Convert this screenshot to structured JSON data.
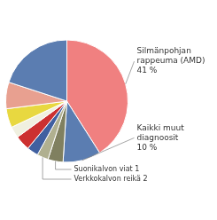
{
  "chart_data": {
    "type": "pie",
    "categories": [
      "Silmänpohjan\nrappeuma (AMD)\n41 %",
      "Kaikki muut\ndiagnoosit\n10 %",
      "Suonikalvon viat 1",
      "Verkkokalvon reikä 2",
      null,
      null,
      null,
      null,
      null,
      null
    ],
    "values": [
      41,
      10,
      4,
      3,
      3,
      4,
      3,
      5,
      7,
      20
    ],
    "colors": [
      "#f08080",
      "#5b7db1",
      "#808060",
      "#b0b090",
      "#4060a0",
      "#cc3030",
      "#f0f0e0",
      "#e8d840",
      "#e8a090",
      "#5b7db1"
    ]
  }
}
